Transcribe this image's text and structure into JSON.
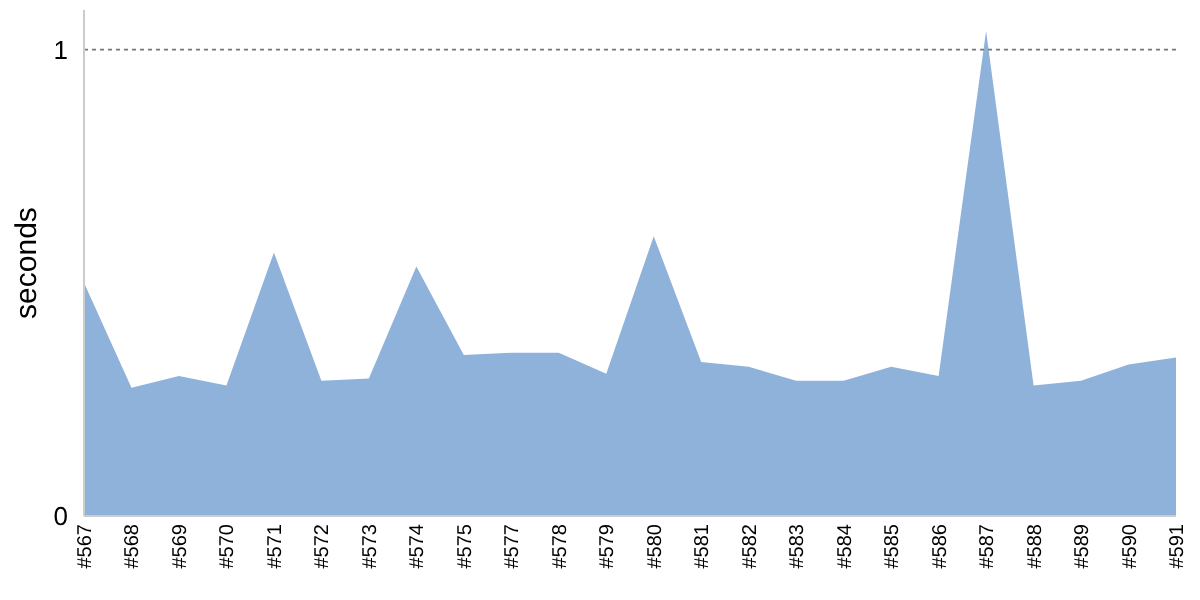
{
  "chart_data": {
    "type": "area",
    "ylabel": "seconds",
    "categories": [
      "#567",
      "#568",
      "#569",
      "#570",
      "#571",
      "#572",
      "#573",
      "#574",
      "#575",
      "#577",
      "#578",
      "#579",
      "#580",
      "#581",
      "#582",
      "#583",
      "#584",
      "#585",
      "#586",
      "#587",
      "#588",
      "#589",
      "#590",
      "#591"
    ],
    "series": [
      {
        "color": "#8fb2db",
        "values": [
          0.5,
          0.275,
          0.3,
          0.28,
          0.565,
          0.29,
          0.295,
          0.535,
          0.345,
          0.35,
          0.35,
          0.305,
          0.6,
          0.33,
          0.32,
          0.29,
          0.29,
          0.32,
          0.3,
          1.04,
          0.28,
          0.29,
          0.325,
          0.34
        ]
      }
    ],
    "ylim": [
      0,
      1.085
    ],
    "yticks": [
      0,
      1
    ],
    "grid": "y"
  }
}
